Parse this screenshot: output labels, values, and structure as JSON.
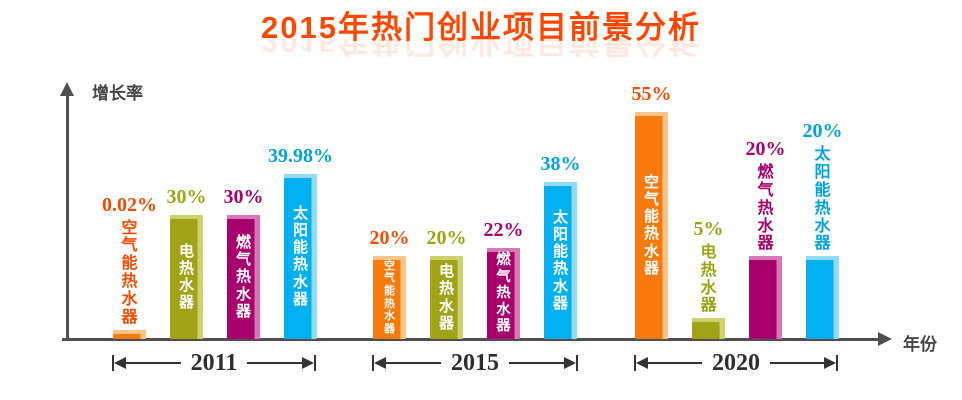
{
  "title_color": "#ff4700",
  "axis_color": "#4f4f4f",
  "chart_data": {
    "type": "bar",
    "title": "2015年热门创业项目前景分析",
    "xlabel": "年份",
    "ylabel": "增长率",
    "categories": [
      "2011",
      "2015",
      "2020"
    ],
    "series": [
      {
        "name": "空气能热水器",
        "color": "#f8790c",
        "edge_color": "#fcc489",
        "label_color": "#f34c00",
        "values": [
          0.02,
          20,
          55
        ],
        "value_labels": [
          "0.02%",
          "20%",
          "55%"
        ],
        "name_layout": [
          "above",
          "inside",
          "inside"
        ]
      },
      {
        "name": "电热水器",
        "color": "#a1a317",
        "edge_color": "#cbd16c",
        "label_color": "#9aa414",
        "values": [
          30,
          20,
          5
        ],
        "value_labels": [
          "30%",
          "20%",
          "5%"
        ],
        "name_layout": [
          "inside",
          "inside",
          "above"
        ]
      },
      {
        "name": "燃气热水器",
        "color": "#a8006c",
        "edge_color": "#d678b6",
        "label_color": "#a8006c",
        "values": [
          30,
          22,
          20
        ],
        "value_labels": [
          "30%",
          "22%",
          "20%"
        ],
        "name_layout": [
          "inside",
          "inside",
          "above"
        ]
      },
      {
        "name": "太阳能热水器",
        "color": "#00b0f0",
        "edge_color": "#92dbf8",
        "label_color": "#00a3dd",
        "values": [
          39.98,
          38,
          20
        ],
        "value_labels": [
          "39.98%",
          "38%",
          "20%"
        ],
        "name_layout": [
          "inside",
          "inside",
          "above"
        ]
      }
    ],
    "ylim": [
      0,
      60
    ],
    "grid": false,
    "legend": "none",
    "value_label_position": "above",
    "series_name_orientation": "vertical"
  }
}
